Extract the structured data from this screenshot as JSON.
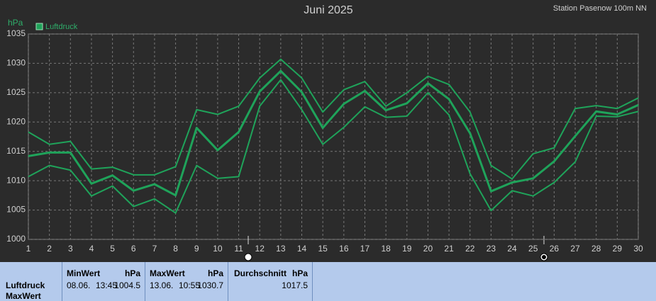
{
  "chart_data": {
    "type": "line",
    "title": "Juni 2025",
    "subtitle": "Station Pasenow 100m NN",
    "y_label": "hPa",
    "x": [
      1,
      2,
      3,
      4,
      5,
      6,
      7,
      8,
      9,
      10,
      11,
      12,
      13,
      14,
      15,
      16,
      17,
      18,
      19,
      20,
      21,
      22,
      23,
      24,
      25,
      26,
      27,
      28,
      29,
      30
    ],
    "xlim": [
      1,
      30
    ],
    "xticks": [
      1,
      2,
      3,
      4,
      5,
      6,
      7,
      8,
      9,
      10,
      11,
      12,
      13,
      14,
      15,
      16,
      17,
      18,
      19,
      20,
      21,
      22,
      23,
      24,
      25,
      26,
      27,
      28,
      29,
      30
    ],
    "ylim": [
      1000,
      1035
    ],
    "yticks": [
      1000,
      1005,
      1010,
      1015,
      1020,
      1025,
      1030,
      1035
    ],
    "grid": true,
    "series": [
      {
        "color": "#1fa35a",
        "values": [
          1018.3,
          1016.2,
          1016.7,
          1012.0,
          1012.3,
          1011.0,
          1011.0,
          1012.4,
          1022.1,
          1021.3,
          1022.7,
          1027.5,
          1030.7,
          1027.5,
          1021.7,
          1025.5,
          1026.9,
          1022.7,
          1025.0,
          1027.8,
          1026.4,
          1021.7,
          1012.6,
          1010.3,
          1014.6,
          1015.6,
          1022.3,
          1022.8,
          1022.3,
          1024.1
        ]
      },
      {
        "name": "Luftdruck",
        "color": "#1fa35a",
        "values": [
          1014.2,
          1014.8,
          1014.8,
          1009.5,
          1010.9,
          1008.3,
          1009.4,
          1007.5,
          1019.0,
          1015.2,
          1018.3,
          1025.2,
          1028.7,
          1025.1,
          1019.0,
          1023.1,
          1025.3,
          1022.0,
          1023.2,
          1026.6,
          1023.9,
          1018.1,
          1008.2,
          1009.7,
          1010.4,
          1013.3,
          1017.6,
          1021.8,
          1021.3,
          1022.9
        ]
      },
      {
        "color": "#1fa35a",
        "values": [
          1010.7,
          1012.6,
          1011.8,
          1007.4,
          1009.1,
          1005.6,
          1006.9,
          1004.5,
          1012.6,
          1010.4,
          1010.7,
          1022.7,
          1027.2,
          1022.1,
          1016.2,
          1019.1,
          1022.6,
          1020.8,
          1021.0,
          1025.0,
          1021.2,
          1011.2,
          1004.9,
          1008.3,
          1007.4,
          1009.7,
          1013.2,
          1021.0,
          1020.9,
          1021.8
        ]
      }
    ]
  },
  "table": {
    "row_label": [
      "Luftdruck",
      "MaxWert"
    ],
    "columns": [
      {
        "header": "MinWert",
        "unit": "hPa",
        "date": "08.06.",
        "time": "13:45",
        "value": 1004.5
      },
      {
        "header": "MaxWert",
        "unit": "hPa",
        "date": "13.06.",
        "time": "10:55",
        "value": 1030.7
      },
      {
        "header": "Durchschnitt",
        "unit": "hPa",
        "value": 1017.5
      }
    ]
  }
}
